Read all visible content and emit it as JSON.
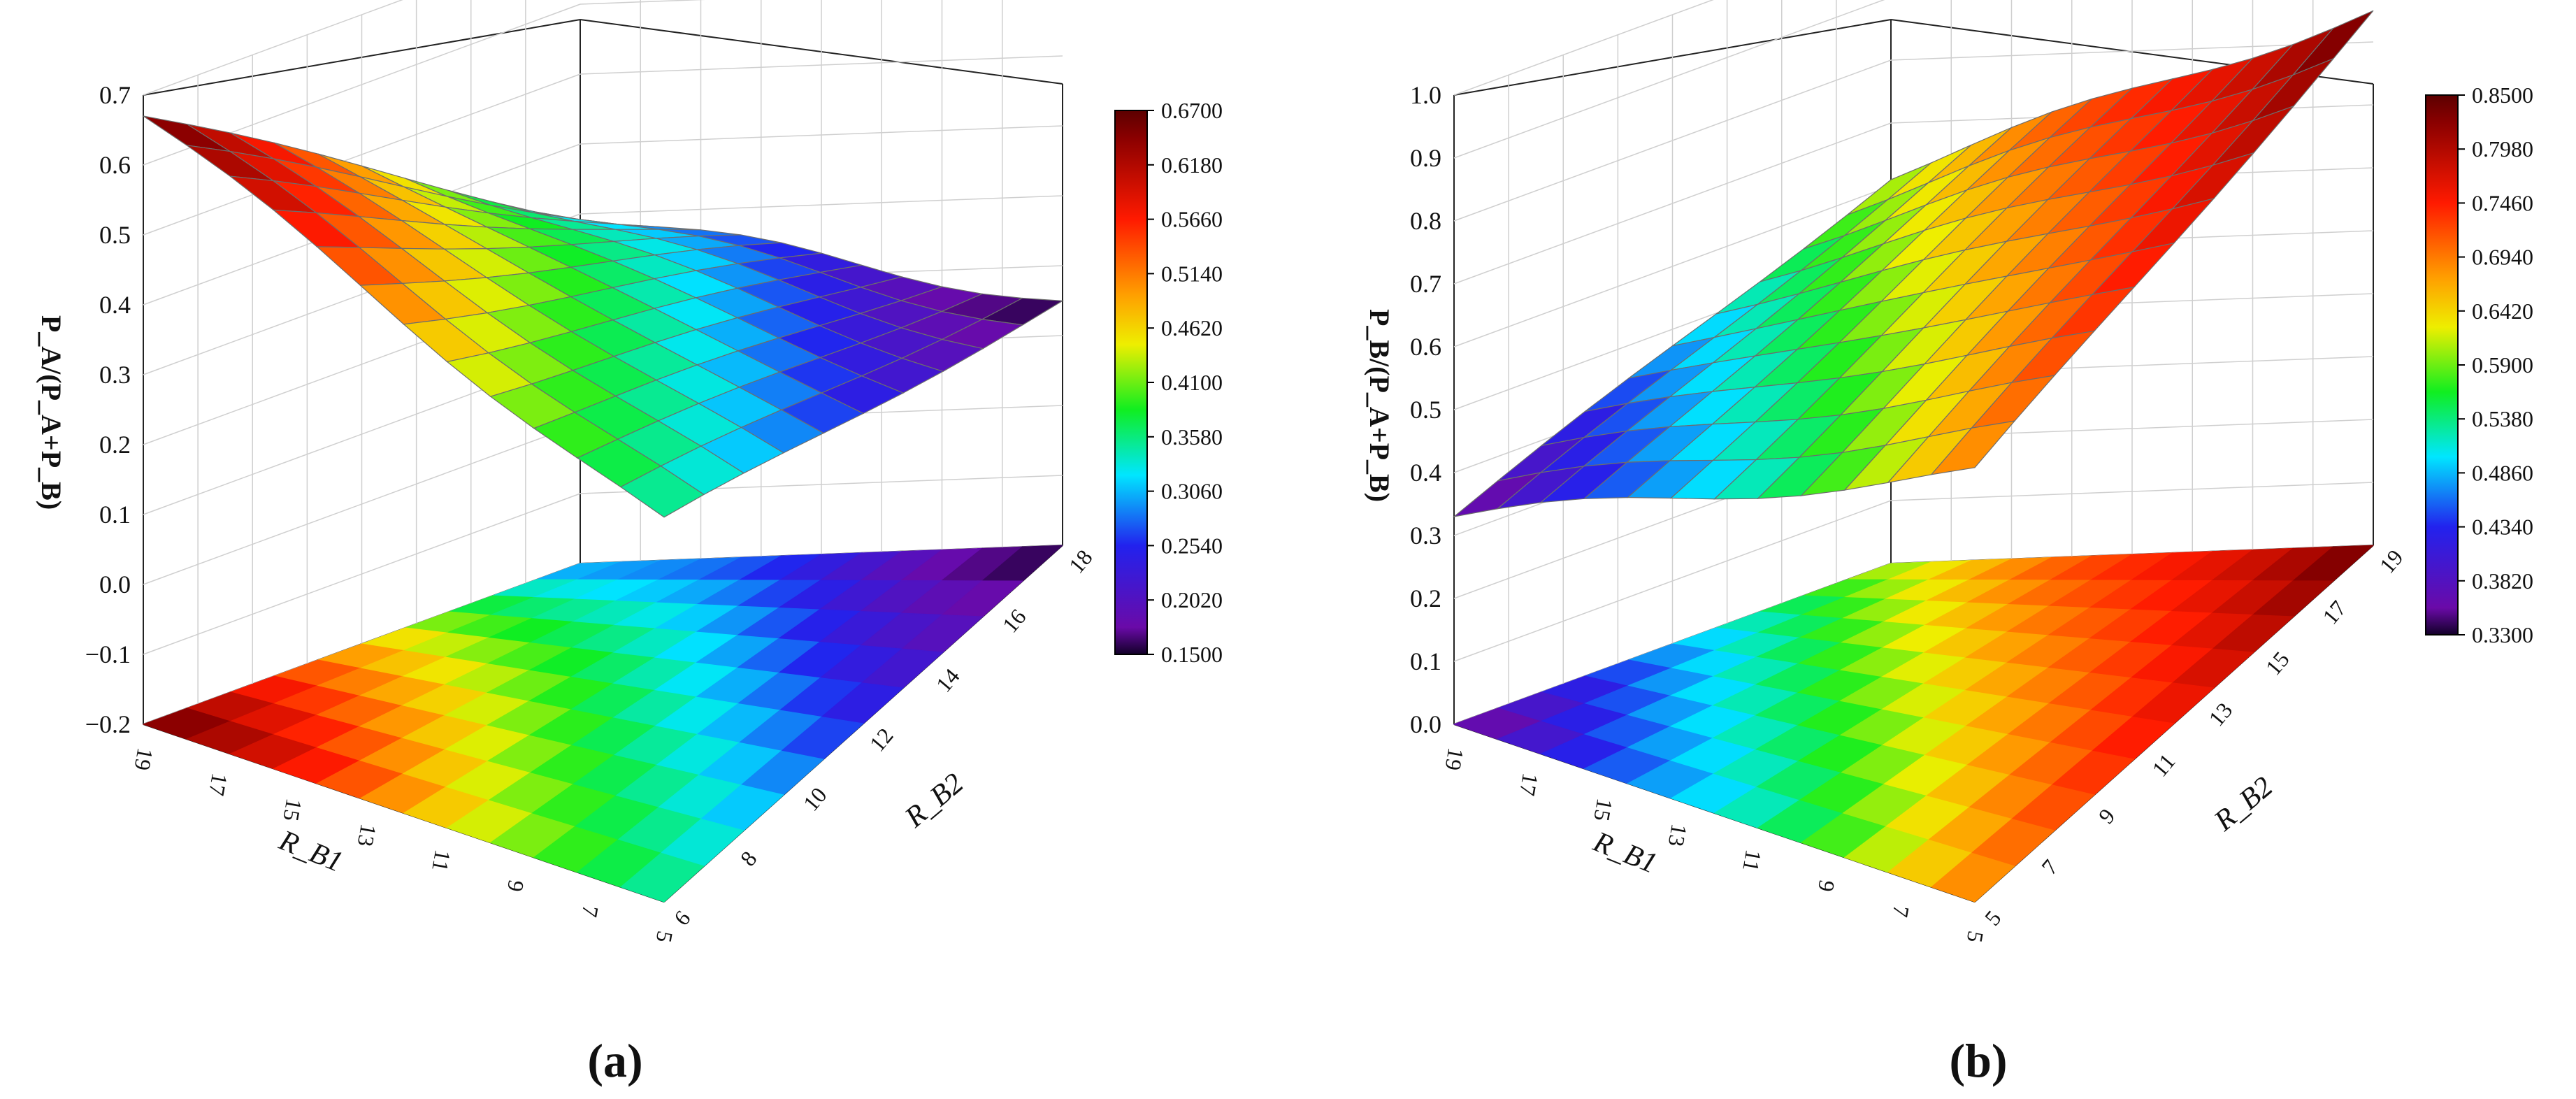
{
  "chart_data": [
    {
      "type": "surface3d",
      "panel_label": "(a)",
      "zlabel": "P_A/(P_A+P_B)",
      "z_ticks": [
        "0.7",
        "0.6",
        "0.5",
        "0.4",
        "0.3",
        "0.2",
        "0.1",
        "0.0",
        "−0.1",
        "−0.2"
      ],
      "zlim": [
        -0.2,
        0.7
      ],
      "x_name": "R_B1",
      "x_ticks": [
        "19",
        "17",
        "15",
        "13",
        "11",
        "9",
        "7",
        "5"
      ],
      "y_name": "R_B2",
      "y_ticks": [
        "18",
        "16",
        "14",
        "12",
        "10",
        "8",
        "6"
      ],
      "colorbar_ticks": [
        "0.6700",
        "0.6180",
        "0.5660",
        "0.5140",
        "0.4620",
        "0.4100",
        "0.3580",
        "0.3060",
        "0.2540",
        "0.2020",
        "0.1500"
      ],
      "colorbar_range": [
        0.15,
        0.67
      ],
      "surface_profile": {
        "x_rb1": [
          19,
          17,
          15,
          13,
          11,
          9,
          7,
          5
        ],
        "corner_values": {
          "rb1_19_rb2_6": 0.67,
          "rb1_19_rb2_18": 0.3,
          "rb1_5_rb2_6": 0.34,
          "rb1_5_rb2_18": 0.15
        }
      },
      "has_projection": true
    },
    {
      "type": "surface3d",
      "panel_label": "(b)",
      "zlabel": "P_B/(P_A+P_B)",
      "z_ticks": [
        "1.0",
        "0.9",
        "0.8",
        "0.7",
        "0.6",
        "0.5",
        "0.4",
        "0.3",
        "0.2",
        "0.1",
        "0.0"
      ],
      "zlim": [
        0.0,
        1.0
      ],
      "x_name": "R_B1",
      "x_ticks": [
        "19",
        "17",
        "15",
        "13",
        "11",
        "9",
        "7",
        "5"
      ],
      "y_name": "R_B2",
      "y_ticks": [
        "19",
        "17",
        "15",
        "13",
        "11",
        "9",
        "7",
        "5"
      ],
      "colorbar_ticks": [
        "0.8500",
        "0.7980",
        "0.7460",
        "0.6940",
        "0.6420",
        "0.5900",
        "0.5380",
        "0.4860",
        "0.4340",
        "0.3820",
        "0.3300"
      ],
      "colorbar_range": [
        0.33,
        0.85
      ],
      "surface_profile": {
        "x_rb1": [
          19,
          17,
          15,
          13,
          11,
          9,
          7,
          5
        ],
        "corner_values": {
          "rb1_19_rb2_5": 0.33,
          "rb1_19_rb2_19": 0.62,
          "rb1_5_rb2_5": 0.68,
          "rb1_5_rb2_19": 0.85
        }
      },
      "has_projection": true
    }
  ]
}
